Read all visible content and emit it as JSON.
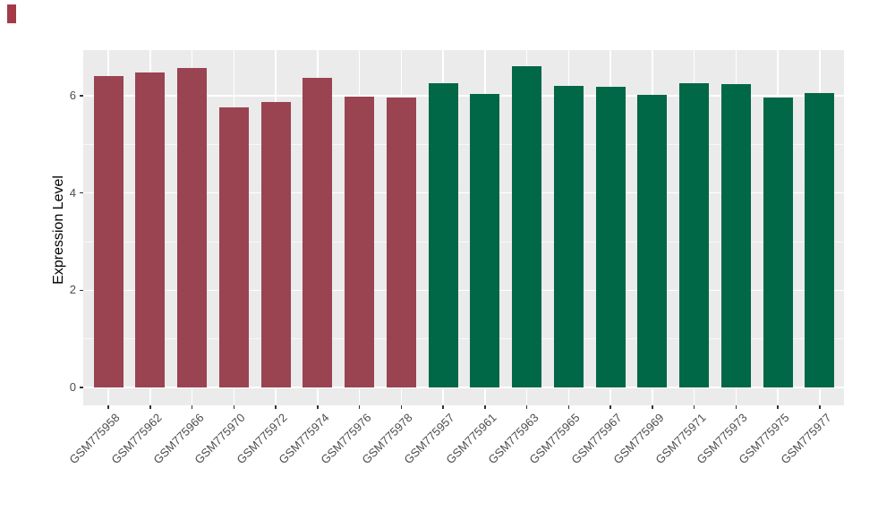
{
  "figure": {
    "background": "#FFFFFF",
    "panel_background": "#EBEBEB",
    "gridline_color": "#FFFFFF",
    "axis_text_color": "#4D4D4D",
    "axis_title_color": "#000000",
    "tick_mark_color": "#333333",
    "corner_mark_color": "#A33B47"
  },
  "chart_data": {
    "type": "bar",
    "title": "",
    "xlabel": "",
    "ylabel": "Expression Level",
    "ylim": [
      0,
      6.94
    ],
    "yticks": [
      0,
      2,
      4,
      6
    ],
    "yminor": [
      1,
      3,
      5
    ],
    "grid": "white major and minor gridlines on gray panel",
    "legend_position": "none",
    "groups": {
      "left": {
        "color": "#9A4351",
        "count": 8
      },
      "right": {
        "color": "#006747",
        "count": 10
      }
    },
    "bars": [
      {
        "label": "GSM775958",
        "value": 6.4,
        "group": "left"
      },
      {
        "label": "GSM775962",
        "value": 6.48,
        "group": "left"
      },
      {
        "label": "GSM775966",
        "value": 6.58,
        "group": "left"
      },
      {
        "label": "GSM775970",
        "value": 5.76,
        "group": "left"
      },
      {
        "label": "GSM775972",
        "value": 5.88,
        "group": "left"
      },
      {
        "label": "GSM775974",
        "value": 6.37,
        "group": "left"
      },
      {
        "label": "GSM775976",
        "value": 5.98,
        "group": "left"
      },
      {
        "label": "GSM775978",
        "value": 5.97,
        "group": "left"
      },
      {
        "label": "GSM775957",
        "value": 6.25,
        "group": "right"
      },
      {
        "label": "GSM775961",
        "value": 6.04,
        "group": "right"
      },
      {
        "label": "GSM775963",
        "value": 6.6,
        "group": "right"
      },
      {
        "label": "GSM775965",
        "value": 6.21,
        "group": "right"
      },
      {
        "label": "GSM775967",
        "value": 6.18,
        "group": "right"
      },
      {
        "label": "GSM775969",
        "value": 6.02,
        "group": "right"
      },
      {
        "label": "GSM775971",
        "value": 6.25,
        "group": "right"
      },
      {
        "label": "GSM775973",
        "value": 6.24,
        "group": "right"
      },
      {
        "label": "GSM775975",
        "value": 5.96,
        "group": "right"
      },
      {
        "label": "GSM775977",
        "value": 6.06,
        "group": "right"
      }
    ]
  }
}
